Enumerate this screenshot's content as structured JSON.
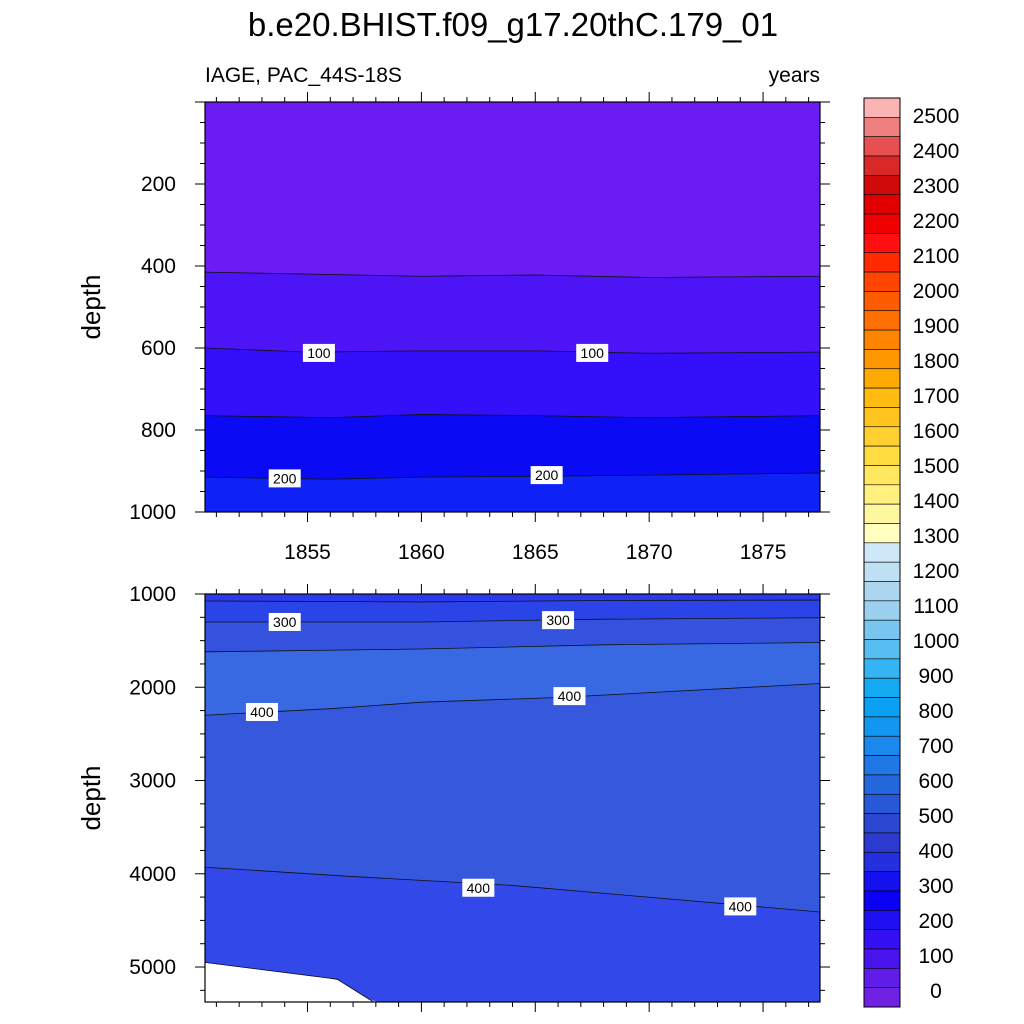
{
  "chart_data": {
    "type": "heatmap",
    "title": "b.e20.BHIST.f09_g17.20thC.179_01",
    "subtitle_left": "IAGE, PAC_44S-18S",
    "subtitle_right": "years",
    "x_range": [
      1850.5,
      1877.5
    ],
    "x_ticks": [
      "1855",
      "1860",
      "1865",
      "1870",
      "1875"
    ],
    "panels": [
      {
        "name": "upper",
        "ylabel": "depth",
        "ylim": [
          0,
          1000
        ],
        "y_ticks": [
          "200",
          "400",
          "600",
          "800",
          "1000"
        ],
        "bands": [
          {
            "color": "#6a1cf2"
          },
          {
            "color": "#4d14f6"
          },
          {
            "color": "#3310f9"
          },
          {
            "color": "#0a0af5"
          },
          {
            "color": "#0e22f6"
          }
        ],
        "contours": [
          {
            "points": [
              [
                1850.5,
                415
              ],
              [
                1860,
                425
              ],
              [
                1865,
                422
              ],
              [
                1870,
                428
              ],
              [
                1877.5,
                425
              ]
            ]
          },
          {
            "points": [
              [
                1850.5,
                600
              ],
              [
                1855,
                610
              ],
              [
                1860,
                607
              ],
              [
                1865,
                607
              ],
              [
                1870,
                613
              ],
              [
                1877.5,
                610
              ]
            ]
          },
          {
            "points": [
              [
                1850.5,
                765
              ],
              [
                1856,
                770
              ],
              [
                1860,
                762
              ],
              [
                1865,
                765
              ],
              [
                1870,
                770
              ],
              [
                1877.5,
                765
              ]
            ]
          },
          {
            "points": [
              [
                1850.5,
                915
              ],
              [
                1856,
                920
              ],
              [
                1860,
                915
              ],
              [
                1865,
                913
              ],
              [
                1870,
                910
              ],
              [
                1877.5,
                905
              ]
            ]
          }
        ],
        "contour_labels": [
          {
            "text": "100",
            "x": 1855.5,
            "y": 612
          },
          {
            "text": "100",
            "x": 1867.5,
            "y": 612
          },
          {
            "text": "200",
            "x": 1854,
            "y": 918
          },
          {
            "text": "200",
            "x": 1865.5,
            "y": 910
          }
        ]
      },
      {
        "name": "lower",
        "ylabel": "depth",
        "ylim": [
          1000,
          5375
        ],
        "y_ticks": [
          "1000",
          "2000",
          "3000",
          "4000",
          "5000"
        ],
        "bands": [
          {
            "color": "#2c3aef"
          },
          {
            "color": "#2b44e8"
          },
          {
            "color": "#3452de"
          },
          {
            "color": "#3868e2"
          },
          {
            "color": "#3558dc"
          },
          {
            "color": "#3248e8"
          }
        ],
        "contours": [
          {
            "points": [
              [
                1850.5,
                1075
              ],
              [
                1860,
                1085
              ],
              [
                1868,
                1070
              ],
              [
                1877.5,
                1065
              ]
            ]
          },
          {
            "points": [
              [
                1850.5,
                1300
              ],
              [
                1860,
                1300
              ],
              [
                1868,
                1270
              ],
              [
                1877.5,
                1255
              ]
            ]
          },
          {
            "points": [
              [
                1850.5,
                1620
              ],
              [
                1860,
                1590
              ],
              [
                1868,
                1545
              ],
              [
                1877.5,
                1520
              ]
            ]
          },
          {
            "points": [
              [
                1850.5,
                2300
              ],
              [
                1856,
                2230
              ],
              [
                1860,
                2160
              ],
              [
                1866,
                2110
              ],
              [
                1877.5,
                1960
              ]
            ]
          },
          {
            "points": [
              [
                1850.5,
                3930
              ],
              [
                1857,
                4030
              ],
              [
                1864,
                4125
              ],
              [
                1877.5,
                4410
              ]
            ]
          },
          {
            "points": [
              [
                1850.5,
                4950
              ],
              [
                1856.3,
                5130
              ],
              [
                1857.9,
                5375
              ]
            ]
          }
        ],
        "contour_labels": [
          {
            "text": "300",
            "x": 1854,
            "y": 1300
          },
          {
            "text": "300",
            "x": 1866,
            "y": 1280
          },
          {
            "text": "400",
            "x": 1853,
            "y": 2265
          },
          {
            "text": "400",
            "x": 1866.5,
            "y": 2095
          },
          {
            "text": "400",
            "x": 1862.5,
            "y": 4150
          },
          {
            "text": "400",
            "x": 1874,
            "y": 4350
          }
        ]
      }
    ],
    "colorbar": {
      "labels": [
        "2500",
        "2400",
        "2300",
        "2200",
        "2100",
        "2000",
        "1900",
        "1800",
        "1700",
        "1600",
        "1500",
        "1400",
        "1300",
        "1200",
        "1100",
        "1000",
        "900",
        "800",
        "700",
        "600",
        "500",
        "400",
        "300",
        "200",
        "100",
        "0"
      ],
      "colors": [
        "#fbb4b4",
        "#f08080",
        "#e65050",
        "#d82828",
        "#d00a0a",
        "#e00000",
        "#f00000",
        "#ff1010",
        "#ff2a00",
        "#ff4500",
        "#ff5c00",
        "#ff7000",
        "#ff8400",
        "#ff9800",
        "#ffaa00",
        "#ffbb10",
        "#ffc420",
        "#ffd030",
        "#ffdc40",
        "#ffe860",
        "#fff080",
        "#fff6a0",
        "#ffffc0",
        "#cfe8f7",
        "#bfe0f2",
        "#acd6ef",
        "#9bd0ee",
        "#78c6ef",
        "#56bef0",
        "#34b4f2",
        "#14aaf2",
        "#0aa0f4",
        "#1296f0",
        "#1a88ec",
        "#1f78e6",
        "#2468de",
        "#2858d6",
        "#2a48cf",
        "#2c3ad0",
        "#2430e0",
        "#1410f0",
        "#0a00f4",
        "#1e10f2",
        "#3410f2",
        "#4a14ee",
        "#601ce8",
        "#7020e2"
      ]
    }
  }
}
